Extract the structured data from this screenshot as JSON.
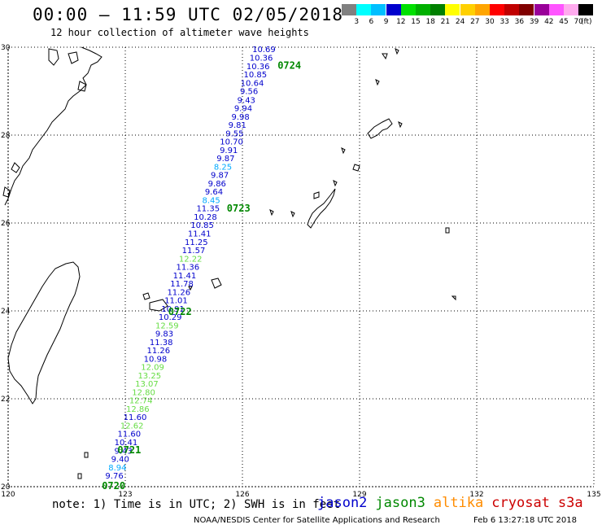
{
  "header": {
    "title": "00:00 – 11:59 UTC 02/05/2018",
    "subtitle": "12 hour collection of altimeter wave heights"
  },
  "scale": {
    "labels": [
      "3",
      "6",
      "9",
      "12",
      "15",
      "18",
      "21",
      "24",
      "27",
      "30",
      "33",
      "36",
      "39",
      "42",
      "45",
      "70"
    ],
    "unit": "(ft)",
    "colors": [
      "#808080",
      "#00ffff",
      "#00bfff",
      "#0000cd",
      "#00e000",
      "#00b000",
      "#008000",
      "#ffff00",
      "#ffd000",
      "#ffa500",
      "#ff0000",
      "#c00000",
      "#800000",
      "#990099",
      "#ff55ff",
      "#ffaaee",
      "#000000"
    ]
  },
  "map": {
    "lat_labels": [
      "30",
      "28",
      "26",
      "24",
      "22",
      "20"
    ],
    "lon_labels": [
      "120",
      "123",
      "126",
      "129",
      "132",
      "135"
    ],
    "lat_values": [
      30,
      28,
      26,
      24,
      22,
      20
    ],
    "lon_values": [
      120,
      123,
      126,
      129,
      132,
      135
    ],
    "track_labels": [
      {
        "text": "0724",
        "lat": 29.58,
        "lon": 126.9
      },
      {
        "text": "0723",
        "lat": 26.33,
        "lon": 125.6
      },
      {
        "text": "0722",
        "lat": 23.98,
        "lon": 124.1
      },
      {
        "text": "0721",
        "lat": 20.83,
        "lon": 122.8
      },
      {
        "text": "0720",
        "lat": 20.02,
        "lon": 122.4
      }
    ],
    "observations": [
      {
        "v": "10.69",
        "lat": 29.94,
        "lon": 126.55,
        "sat": "jason2"
      },
      {
        "v": "10.36",
        "lat": 29.75,
        "lon": 126.48,
        "sat": "jason2"
      },
      {
        "v": "10.36",
        "lat": 29.56,
        "lon": 126.4,
        "sat": "jason2"
      },
      {
        "v": "10.85",
        "lat": 29.37,
        "lon": 126.33,
        "sat": "jason2"
      },
      {
        "v": "10.64",
        "lat": 29.18,
        "lon": 126.25,
        "sat": "jason2"
      },
      {
        "v": "9.56",
        "lat": 28.99,
        "lon": 126.17,
        "sat": "jason2"
      },
      {
        "v": "9.43",
        "lat": 28.79,
        "lon": 126.1,
        "sat": "jason2"
      },
      {
        "v": "9.94",
        "lat": 28.6,
        "lon": 126.02,
        "sat": "jason2"
      },
      {
        "v": "9.98",
        "lat": 28.41,
        "lon": 125.95,
        "sat": "jason2"
      },
      {
        "v": "9.81",
        "lat": 28.22,
        "lon": 125.87,
        "sat": "jason2"
      },
      {
        "v": "9.55",
        "lat": 28.03,
        "lon": 125.8,
        "sat": "jason2"
      },
      {
        "v": "10.70",
        "lat": 27.84,
        "lon": 125.72,
        "sat": "jason2"
      },
      {
        "v": "9.91",
        "lat": 27.65,
        "lon": 125.65,
        "sat": "jason2"
      },
      {
        "v": "9.87",
        "lat": 27.46,
        "lon": 125.57,
        "sat": "jason2"
      },
      {
        "v": "8.25",
        "lat": 27.27,
        "lon": 125.5,
        "sat": "jason2",
        "cls": "c9"
      },
      {
        "v": "9.87",
        "lat": 27.08,
        "lon": 125.42,
        "sat": "jason2"
      },
      {
        "v": "9.86",
        "lat": 26.89,
        "lon": 125.35,
        "sat": "jason2"
      },
      {
        "v": "9.64",
        "lat": 26.7,
        "lon": 125.27,
        "sat": "jason2"
      },
      {
        "v": "8.45",
        "lat": 26.51,
        "lon": 125.2,
        "sat": "jason2",
        "cls": "c9"
      },
      {
        "v": "11.35",
        "lat": 26.32,
        "lon": 125.12,
        "sat": "jason2"
      },
      {
        "v": "10.28",
        "lat": 26.13,
        "lon": 125.05,
        "sat": "jason2"
      },
      {
        "v": "10.85",
        "lat": 25.94,
        "lon": 124.97,
        "sat": "jason2"
      },
      {
        "v": "11.41",
        "lat": 25.75,
        "lon": 124.9,
        "sat": "jason2"
      },
      {
        "v": "11.25",
        "lat": 25.56,
        "lon": 124.82,
        "sat": "jason2"
      },
      {
        "v": "11.57",
        "lat": 25.37,
        "lon": 124.75,
        "sat": "jason2"
      },
      {
        "v": "12.22",
        "lat": 25.18,
        "lon": 124.67,
        "sat": "jason2",
        "cls": "c12"
      },
      {
        "v": "11.36",
        "lat": 24.99,
        "lon": 124.6,
        "sat": "jason2"
      },
      {
        "v": "11.41",
        "lat": 24.8,
        "lon": 124.52,
        "sat": "jason2"
      },
      {
        "v": "11.78",
        "lat": 24.61,
        "lon": 124.45,
        "sat": "jason2"
      },
      {
        "v": "11.26",
        "lat": 24.42,
        "lon": 124.37,
        "sat": "jason2"
      },
      {
        "v": "11.01",
        "lat": 24.23,
        "lon": 124.3,
        "sat": "jason2"
      },
      {
        "v": "10.91",
        "lat": 24.04,
        "lon": 124.22,
        "sat": "jason2"
      },
      {
        "v": "10.29",
        "lat": 23.85,
        "lon": 124.15,
        "sat": "jason2"
      },
      {
        "v": "12.59",
        "lat": 23.66,
        "lon": 124.07,
        "sat": "jason2",
        "cls": "c12"
      },
      {
        "v": "9.83",
        "lat": 23.47,
        "lon": 124.0,
        "sat": "jason2"
      },
      {
        "v": "11.38",
        "lat": 23.28,
        "lon": 123.92,
        "sat": "jason2"
      },
      {
        "v": "11.26",
        "lat": 23.09,
        "lon": 123.85,
        "sat": "jason2"
      },
      {
        "v": "10.98",
        "lat": 22.9,
        "lon": 123.77,
        "sat": "jason2"
      },
      {
        "v": "12.09",
        "lat": 22.71,
        "lon": 123.7,
        "sat": "jason2",
        "cls": "c12"
      },
      {
        "v": "13.25",
        "lat": 22.52,
        "lon": 123.62,
        "sat": "jason2",
        "cls": "c12"
      },
      {
        "v": "13.07",
        "lat": 22.33,
        "lon": 123.55,
        "sat": "jason2",
        "cls": "c12"
      },
      {
        "v": "12.80",
        "lat": 22.14,
        "lon": 123.47,
        "sat": "jason2",
        "cls": "c12"
      },
      {
        "v": "12.74",
        "lat": 21.95,
        "lon": 123.4,
        "sat": "jason2",
        "cls": "c12"
      },
      {
        "v": "12.86",
        "lat": 21.76,
        "lon": 123.32,
        "sat": "jason2",
        "cls": "c12"
      },
      {
        "v": "11.60",
        "lat": 21.57,
        "lon": 123.25,
        "sat": "jason2"
      },
      {
        "v": "12.62",
        "lat": 21.38,
        "lon": 123.17,
        "sat": "jason2",
        "cls": "c12"
      },
      {
        "v": "11.60",
        "lat": 21.19,
        "lon": 123.1,
        "sat": "jason2"
      },
      {
        "v": "10.41",
        "lat": 21.0,
        "lon": 123.02,
        "sat": "jason2"
      },
      {
        "v": "9.43",
        "lat": 20.81,
        "lon": 122.95,
        "sat": "jason2"
      },
      {
        "v": "9.40",
        "lat": 20.62,
        "lon": 122.87,
        "sat": "jason2"
      },
      {
        "v": "8.94",
        "lat": 20.43,
        "lon": 122.8,
        "sat": "jason2",
        "cls": "c9"
      },
      {
        "v": "9.76",
        "lat": 20.24,
        "lon": 122.72,
        "sat": "jason2"
      }
    ]
  },
  "footer": {
    "note": "note: 1) Time is in UTC; 2) SWH is in feet",
    "satellites": [
      {
        "name": "jason2",
        "color": "#0000cc"
      },
      {
        "name": "jason3",
        "color": "#008800"
      },
      {
        "name": "altika",
        "color": "#ff8c00"
      },
      {
        "name": "cryosat",
        "color": "#cc0000"
      },
      {
        "name": "s3a",
        "color": "#cc0000"
      }
    ],
    "credit": "NOAA/NESDIS Center for Satellite Applications and Research",
    "timestamp": "Feb  6 13:27:18 UTC 2018"
  },
  "colors": {
    "track_label": "#008800",
    "obs_blue": "#0000cc",
    "obs_cyan": "#00aaff",
    "obs_green": "#66dd44"
  }
}
